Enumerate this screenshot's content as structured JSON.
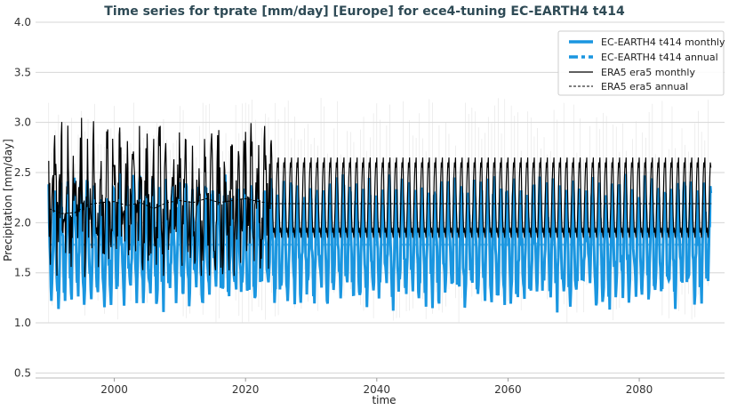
{
  "chart_data": {
    "type": "line",
    "title": "Time series for tprate [mm/day] [Europe] for ece4-tuning EC-EARTH4 t414",
    "xlabel": "time",
    "ylabel": "Precipitation [mm/day]",
    "xlim": [
      1988,
      2093
    ],
    "ylim": [
      0.45,
      4.0
    ],
    "xticks": [
      "2000",
      "2020",
      "2040",
      "2060",
      "2080"
    ],
    "yticks": [
      "0.5",
      "1.0",
      "1.5",
      "2.0",
      "2.5",
      "3.0",
      "3.5",
      "4.0"
    ],
    "grid": "horizontal",
    "legend_position": "top-right",
    "colors": {
      "model": "#1a96e0",
      "ref": "#000000",
      "spread": "#d8d8d8",
      "title": "#2e4a55"
    },
    "series": [
      {
        "name": "EC-EARTH4 t414 monthly",
        "style": "solid-thick",
        "color": "#1a96e0",
        "x_range": [
          1990,
          2091
        ],
        "annual_mean": 1.78,
        "seasonal_cycle": [
          2.2,
          1.9,
          1.7,
          1.5,
          1.45,
          1.35,
          1.3,
          1.5,
          1.8,
          2.1,
          2.3,
          2.3
        ]
      },
      {
        "name": "EC-EARTH4 t414 annual",
        "style": "dashed-thick",
        "color": "#1a96e0",
        "x_range": [
          1990,
          2091
        ],
        "value": 1.78
      },
      {
        "name": "ERA5 era5 monthly",
        "style": "solid",
        "color": "#000000",
        "x_range": [
          1990,
          2091
        ],
        "observed_until": 2024,
        "seasonal_cycle": [
          2.65,
          2.3,
          2.05,
          1.9,
          1.95,
          1.9,
          1.85,
          2.0,
          2.2,
          2.45,
          2.6,
          2.55
        ]
      },
      {
        "name": "ERA5 era5 annual",
        "style": "dashed",
        "color": "#000000",
        "x": [
          1990,
          1992,
          1994,
          1996,
          1998,
          2000,
          2002,
          2004,
          2006,
          2008,
          2010,
          2012,
          2014,
          2016,
          2018,
          2020,
          2022,
          2024,
          2091
        ],
        "values": [
          2.14,
          2.09,
          2.1,
          2.18,
          2.2,
          2.21,
          2.17,
          2.2,
          2.14,
          2.2,
          2.22,
          2.2,
          2.24,
          2.2,
          2.22,
          2.24,
          2.21,
          2.19,
          2.19
        ]
      }
    ]
  }
}
